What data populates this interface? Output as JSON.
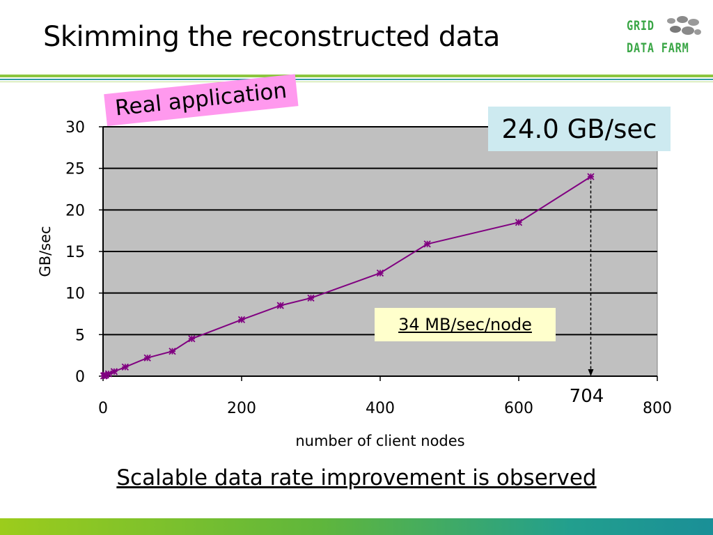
{
  "slide": {
    "title": "Skimming the reconstructed data",
    "footer": "Scalable data rate improvement is observed"
  },
  "logo": {
    "line1": "GRID",
    "line2": "DATA FARM",
    "color": "#3aa646"
  },
  "annotations": {
    "real_application": "Real application",
    "peak_rate": "24.0 GB/sec",
    "per_node_rate": "34 MB/sec/node",
    "max_nodes_label": "704"
  },
  "chart_data": {
    "type": "line",
    "title": "",
    "xlabel": "number of client nodes",
    "ylabel": "GB/sec",
    "xlim": [
      0,
      800
    ],
    "ylim": [
      0,
      30
    ],
    "x_ticks": [
      0,
      200,
      400,
      600,
      800
    ],
    "y_ticks": [
      0,
      5,
      10,
      15,
      20,
      25,
      30
    ],
    "grid": "horizontal",
    "plot_background": "#c0c0c0",
    "series": [
      {
        "color": "#800080",
        "marker": "asterisk",
        "x": [
          1,
          2,
          4,
          8,
          16,
          32,
          64,
          100,
          128,
          200,
          256,
          300,
          400,
          468,
          600,
          704
        ],
        "y": [
          0.03,
          0.07,
          0.14,
          0.28,
          0.55,
          1.1,
          2.2,
          3.0,
          4.5,
          6.8,
          8.5,
          9.4,
          12.4,
          15.9,
          18.5,
          24.0
        ]
      }
    ],
    "annotation_marker": {
      "x": 704,
      "y": 24.0,
      "style": "dashed-arrow-to-axis"
    }
  }
}
